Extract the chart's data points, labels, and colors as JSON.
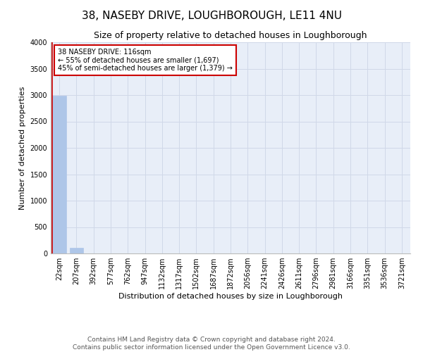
{
  "title": "38, NASEBY DRIVE, LOUGHBOROUGH, LE11 4NU",
  "subtitle": "Size of property relative to detached houses in Loughborough",
  "xlabel": "Distribution of detached houses by size in Loughborough",
  "ylabel": "Number of detached properties",
  "footer_line1": "Contains HM Land Registry data © Crown copyright and database right 2024.",
  "footer_line2": "Contains public sector information licensed under the Open Government Licence v3.0.",
  "categories": [
    "22sqm",
    "207sqm",
    "392sqm",
    "577sqm",
    "762sqm",
    "947sqm",
    "1132sqm",
    "1317sqm",
    "1502sqm",
    "1687sqm",
    "1872sqm",
    "2056sqm",
    "2241sqm",
    "2426sqm",
    "2611sqm",
    "2796sqm",
    "2981sqm",
    "3166sqm",
    "3351sqm",
    "3536sqm",
    "3721sqm"
  ],
  "bar_values": [
    2990,
    105,
    0,
    0,
    0,
    0,
    0,
    0,
    0,
    0,
    0,
    0,
    0,
    0,
    0,
    0,
    0,
    0,
    0,
    0,
    0
  ],
  "bar_color": "#aec6e8",
  "bar_edge_color": "#aec6e8",
  "annotation_line1": "38 NASEBY DRIVE: 116sqm",
  "annotation_line2": "← 55% of detached houses are smaller (1,697)",
  "annotation_line3": "45% of semi-detached houses are larger (1,379) →",
  "vline_color": "#cc0000",
  "annotation_box_edgecolor": "#cc0000",
  "annotation_box_facecolor": "#ffffff",
  "ylim": [
    0,
    4000
  ],
  "yticks": [
    0,
    500,
    1000,
    1500,
    2000,
    2500,
    3000,
    3500,
    4000
  ],
  "grid_color": "#d0d8e8",
  "bg_color": "#e8eef8",
  "title_fontsize": 11,
  "subtitle_fontsize": 9,
  "axis_label_fontsize": 8,
  "tick_fontsize": 7,
  "annotation_fontsize": 7,
  "footer_fontsize": 6.5
}
